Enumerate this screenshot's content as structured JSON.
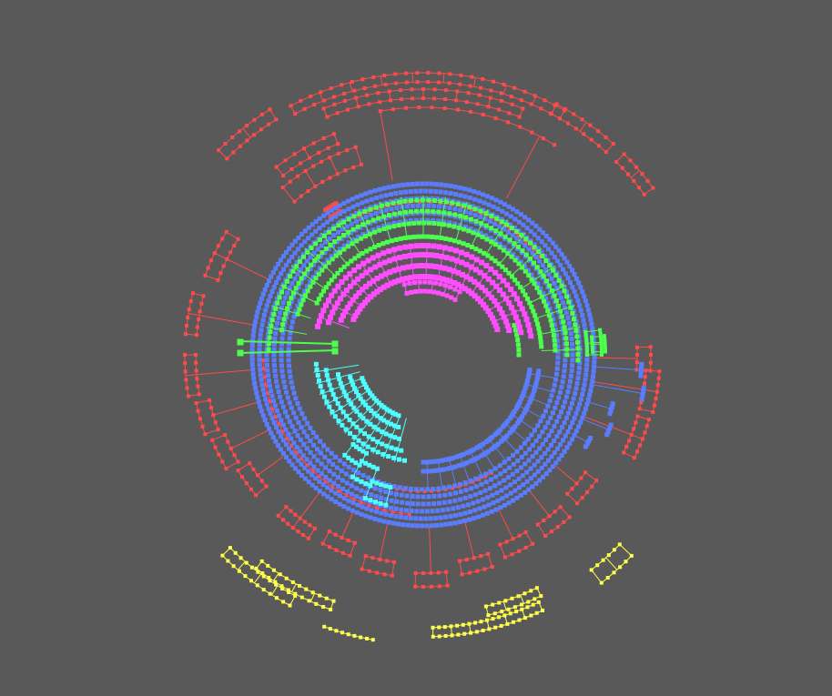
{
  "diagram": {
    "type": "radial-tree",
    "background": "#595959",
    "palette": {
      "red": "#ff4b4b",
      "blue": "#5a7dff",
      "green": "#4dff4d",
      "magenta": "#ff4dff",
      "cyan": "#4dffff",
      "yellow": "#ffff4d"
    },
    "groups": [
      {
        "name": "outer-red-branches",
        "color": "red"
      },
      {
        "name": "inner-blue-ring",
        "color": "blue"
      },
      {
        "name": "green-ring",
        "color": "green"
      },
      {
        "name": "magenta-core",
        "color": "magenta"
      },
      {
        "name": "cyan-core",
        "color": "cyan"
      },
      {
        "name": "yellow-outer-branches",
        "color": "yellow"
      }
    ]
  }
}
